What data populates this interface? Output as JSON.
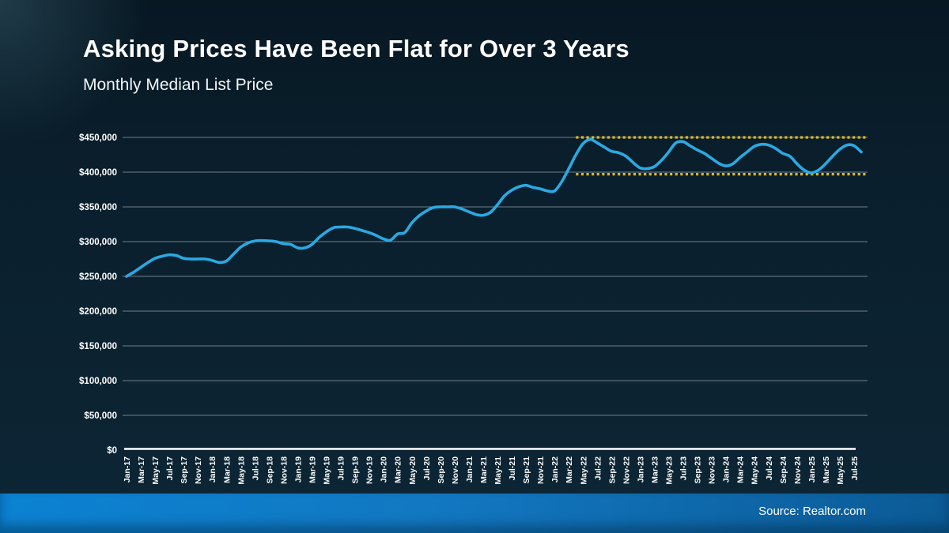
{
  "slide": {
    "title": "Asking Prices Have Been Flat for Over 3 Years",
    "subtitle": "Monthly Median List Price",
    "source": "Source: Realtor.com"
  },
  "colors": {
    "line": "#2aa9e2",
    "range_dotted": "#d9b92b",
    "gridline": "#8d989f",
    "axis": "#ffffff",
    "text": "#ffffff",
    "footer_left": "#0b82d2",
    "footer_right": "#0b5a95",
    "background_top": "#071823",
    "background_bottom": "#0d2635"
  },
  "chart_data": {
    "type": "line",
    "title": "Asking Prices Have Been Flat for Over 3 Years",
    "subtitle": "Monthly Median List Price",
    "xlabel": "",
    "ylabel": "",
    "ylim": [
      0,
      450000
    ],
    "y_tick_step": 50000,
    "y_tick_labels": [
      "$0",
      "$50,000",
      "$100,000",
      "$150,000",
      "$200,000",
      "$250,000",
      "$300,000",
      "$350,000",
      "$400,000",
      "$450,000"
    ],
    "x_tick_every": 2,
    "grid": true,
    "legend": false,
    "categories": [
      "Jan-17",
      "Feb-17",
      "Mar-17",
      "Apr-17",
      "May-17",
      "Jun-17",
      "Jul-17",
      "Aug-17",
      "Sep-17",
      "Oct-17",
      "Nov-17",
      "Dec-17",
      "Jan-18",
      "Feb-18",
      "Mar-18",
      "Apr-18",
      "May-18",
      "Jun-18",
      "Jul-18",
      "Aug-18",
      "Sep-18",
      "Oct-18",
      "Nov-18",
      "Dec-18",
      "Jan-19",
      "Feb-19",
      "Mar-19",
      "Apr-19",
      "May-19",
      "Jun-19",
      "Jul-19",
      "Aug-19",
      "Sep-19",
      "Oct-19",
      "Nov-19",
      "Dec-19",
      "Jan-20",
      "Feb-20",
      "Mar-20",
      "Apr-20",
      "May-20",
      "Jun-20",
      "Jul-20",
      "Aug-20",
      "Sep-20",
      "Oct-20",
      "Nov-20",
      "Dec-20",
      "Jan-21",
      "Feb-21",
      "Mar-21",
      "Apr-21",
      "May-21",
      "Jun-21",
      "Jul-21",
      "Aug-21",
      "Sep-21",
      "Oct-21",
      "Nov-21",
      "Dec-21",
      "Jan-22",
      "Feb-22",
      "Mar-22",
      "Apr-22",
      "May-22",
      "Jun-22",
      "Jul-22",
      "Aug-22",
      "Sep-22",
      "Oct-22",
      "Nov-22",
      "Dec-22",
      "Jan-23",
      "Feb-23",
      "Mar-23",
      "Apr-23",
      "May-23",
      "Jun-23",
      "Jul-23",
      "Aug-23",
      "Sep-23",
      "Oct-23",
      "Nov-23",
      "Dec-23",
      "Jan-24",
      "Feb-24",
      "Mar-24",
      "Apr-24",
      "May-24",
      "Jun-24",
      "Jul-24",
      "Aug-24",
      "Sep-24",
      "Oct-24",
      "Nov-24",
      "Dec-24",
      "Jan-25",
      "Feb-25",
      "Mar-25",
      "Apr-25",
      "May-25",
      "Jun-25",
      "Jul-25",
      "Aug-25"
    ],
    "series": [
      {
        "name": "Monthly Median List Price",
        "values": [
          250000,
          256000,
          263000,
          270000,
          276000,
          279000,
          281000,
          280000,
          276000,
          275000,
          275000,
          275000,
          273000,
          270000,
          272000,
          282000,
          292000,
          298000,
          301000,
          301500,
          301000,
          300000,
          297000,
          296000,
          291000,
          291000,
          296000,
          306000,
          314000,
          320000,
          321000,
          321000,
          319000,
          316000,
          313000,
          309000,
          304000,
          302000,
          311000,
          313000,
          327000,
          337000,
          344000,
          349000,
          350000,
          350000,
          350000,
          347000,
          343000,
          339000,
          338000,
          342000,
          353000,
          366000,
          374000,
          379000,
          381000,
          378000,
          376000,
          373000,
          373000,
          386000,
          405000,
          425000,
          441000,
          447000,
          442000,
          436000,
          430000,
          428000,
          423000,
          414000,
          406000,
          405000,
          408000,
          417000,
          429000,
          442000,
          444000,
          438000,
          432000,
          427000,
          420000,
          413000,
          409000,
          412000,
          421000,
          429000,
          437000,
          440000,
          439000,
          434000,
          427000,
          423000,
          412000,
          403000,
          399000,
          403000,
          412000,
          423000,
          433000,
          439000,
          438000,
          429000
        ]
      }
    ],
    "annotations": {
      "flat_range_lines": {
        "style": "dotted",
        "color": "#d9b92b",
        "upper_value": 450000,
        "lower_value": 397000,
        "start_category": "Apr-22",
        "end_category": "Aug-25"
      }
    }
  }
}
